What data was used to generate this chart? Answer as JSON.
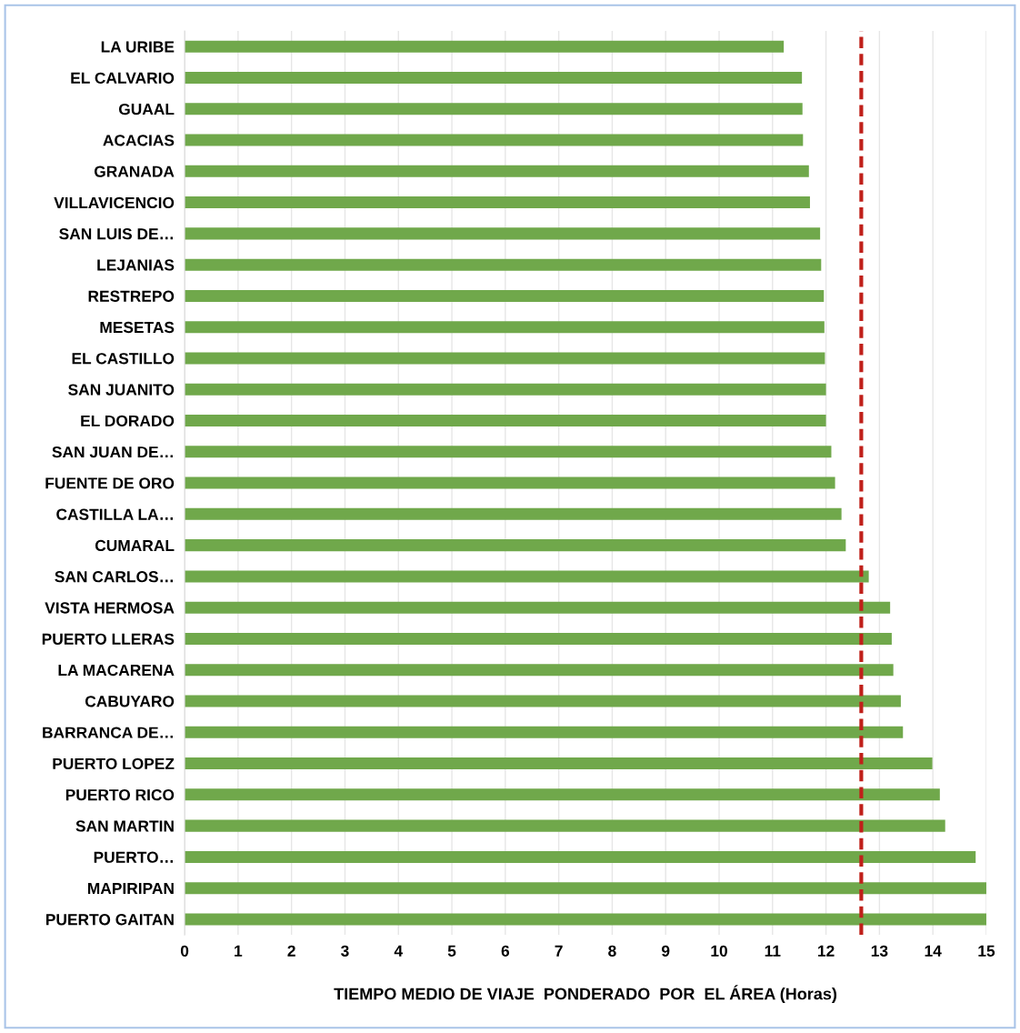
{
  "chart_data": {
    "type": "bar",
    "orientation": "horizontal",
    "xlabel": "TIEMPO MEDIO DE VIAJE  PONDERADO  POR  EL ÁREA (Horas)",
    "categories": [
      "LA URIBE",
      "EL CALVARIO",
      "GUAAL",
      "ACACIAS",
      "GRANADA",
      "VILLAVICENCIO",
      "SAN LUIS DE…",
      "LEJANIAS",
      "RESTREPO",
      "MESETAS",
      "EL CASTILLO",
      "SAN JUANITO",
      "EL DORADO",
      "SAN JUAN DE…",
      "FUENTE DE ORO",
      "CASTILLA LA…",
      "CUMARAL",
      "SAN CARLOS…",
      "VISTA HERMOSA",
      "PUERTO LLERAS",
      "LA MACARENA",
      "CABUYARO",
      "BARRANCA DE…",
      "PUERTO LOPEZ",
      "PUERTO RICO",
      "SAN MARTIN",
      "PUERTO…",
      "MAPIRIPAN",
      "PUERTO GAITAN"
    ],
    "values": [
      11.21,
      11.55,
      11.56,
      11.57,
      11.68,
      11.7,
      11.89,
      11.91,
      11.96,
      11.97,
      11.98,
      12.0,
      12.0,
      12.1,
      12.17,
      12.29,
      12.37,
      12.8,
      13.2,
      13.23,
      13.26,
      13.4,
      13.44,
      13.99,
      14.13,
      14.23,
      14.8,
      15.0,
      15.0
    ],
    "color": "#70a84b",
    "xlim": [
      0,
      15
    ],
    "xticks": [
      0,
      1,
      2,
      3,
      4,
      5,
      6,
      7,
      8,
      9,
      10,
      11,
      12,
      13,
      14,
      15
    ],
    "grid": "x",
    "legend": false,
    "ref_lines": [
      {
        "axis": "x",
        "value": 12.66,
        "color": "#c0201a",
        "line_style": "dashed"
      }
    ]
  }
}
